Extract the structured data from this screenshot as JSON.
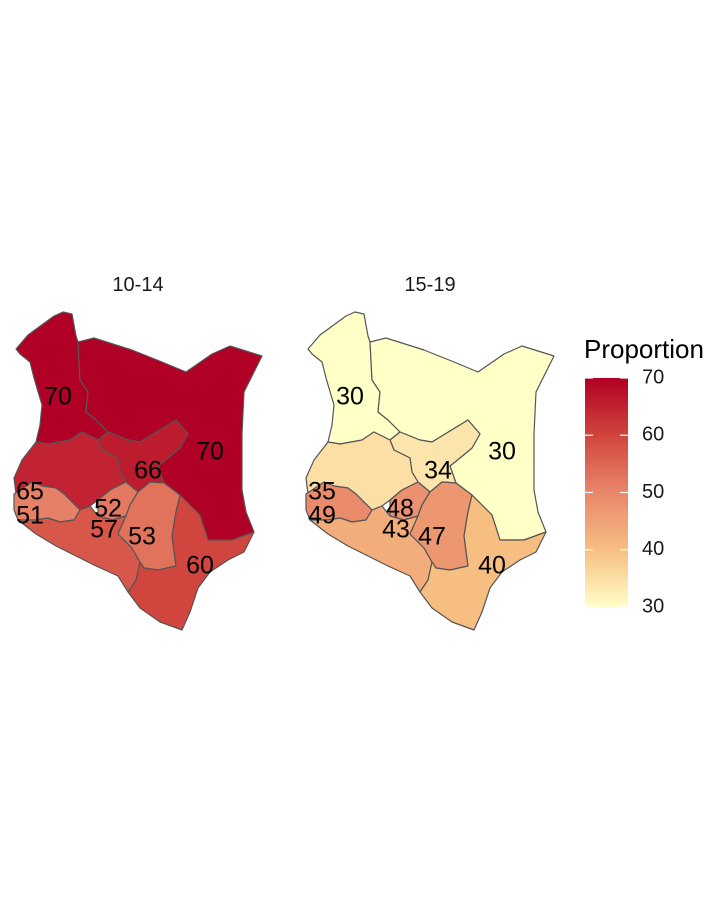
{
  "panels": [
    {
      "title": "10-14",
      "regions": [
        {
          "id": "northwest",
          "value": 70
        },
        {
          "id": "northeast",
          "value": 70
        },
        {
          "id": "central_east",
          "value": 66
        },
        {
          "id": "west_upper",
          "value": 65
        },
        {
          "id": "west_lower",
          "value": 51
        },
        {
          "id": "central",
          "value": 52
        },
        {
          "id": "south_central",
          "value": 57
        },
        {
          "id": "eastern",
          "value": 53
        },
        {
          "id": "coast",
          "value": 60
        }
      ]
    },
    {
      "title": "15-19",
      "regions": [
        {
          "id": "northwest",
          "value": 30
        },
        {
          "id": "northeast",
          "value": 30
        },
        {
          "id": "central_east",
          "value": 34
        },
        {
          "id": "west_upper",
          "value": 35
        },
        {
          "id": "west_lower",
          "value": 49
        },
        {
          "id": "central",
          "value": 48
        },
        {
          "id": "south_central",
          "value": 43
        },
        {
          "id": "eastern",
          "value": 47
        },
        {
          "id": "coast",
          "value": 40
        }
      ]
    }
  ],
  "legend": {
    "title": "Proportion",
    "ticks": [
      70,
      60,
      50,
      40,
      30
    ],
    "min": 30,
    "max": 70,
    "colors": {
      "low": "#FFFFC8",
      "mid_low": "#F7BE82",
      "mid": "#E8866A",
      "mid_high": "#D0453D",
      "high": "#B10026"
    }
  }
}
